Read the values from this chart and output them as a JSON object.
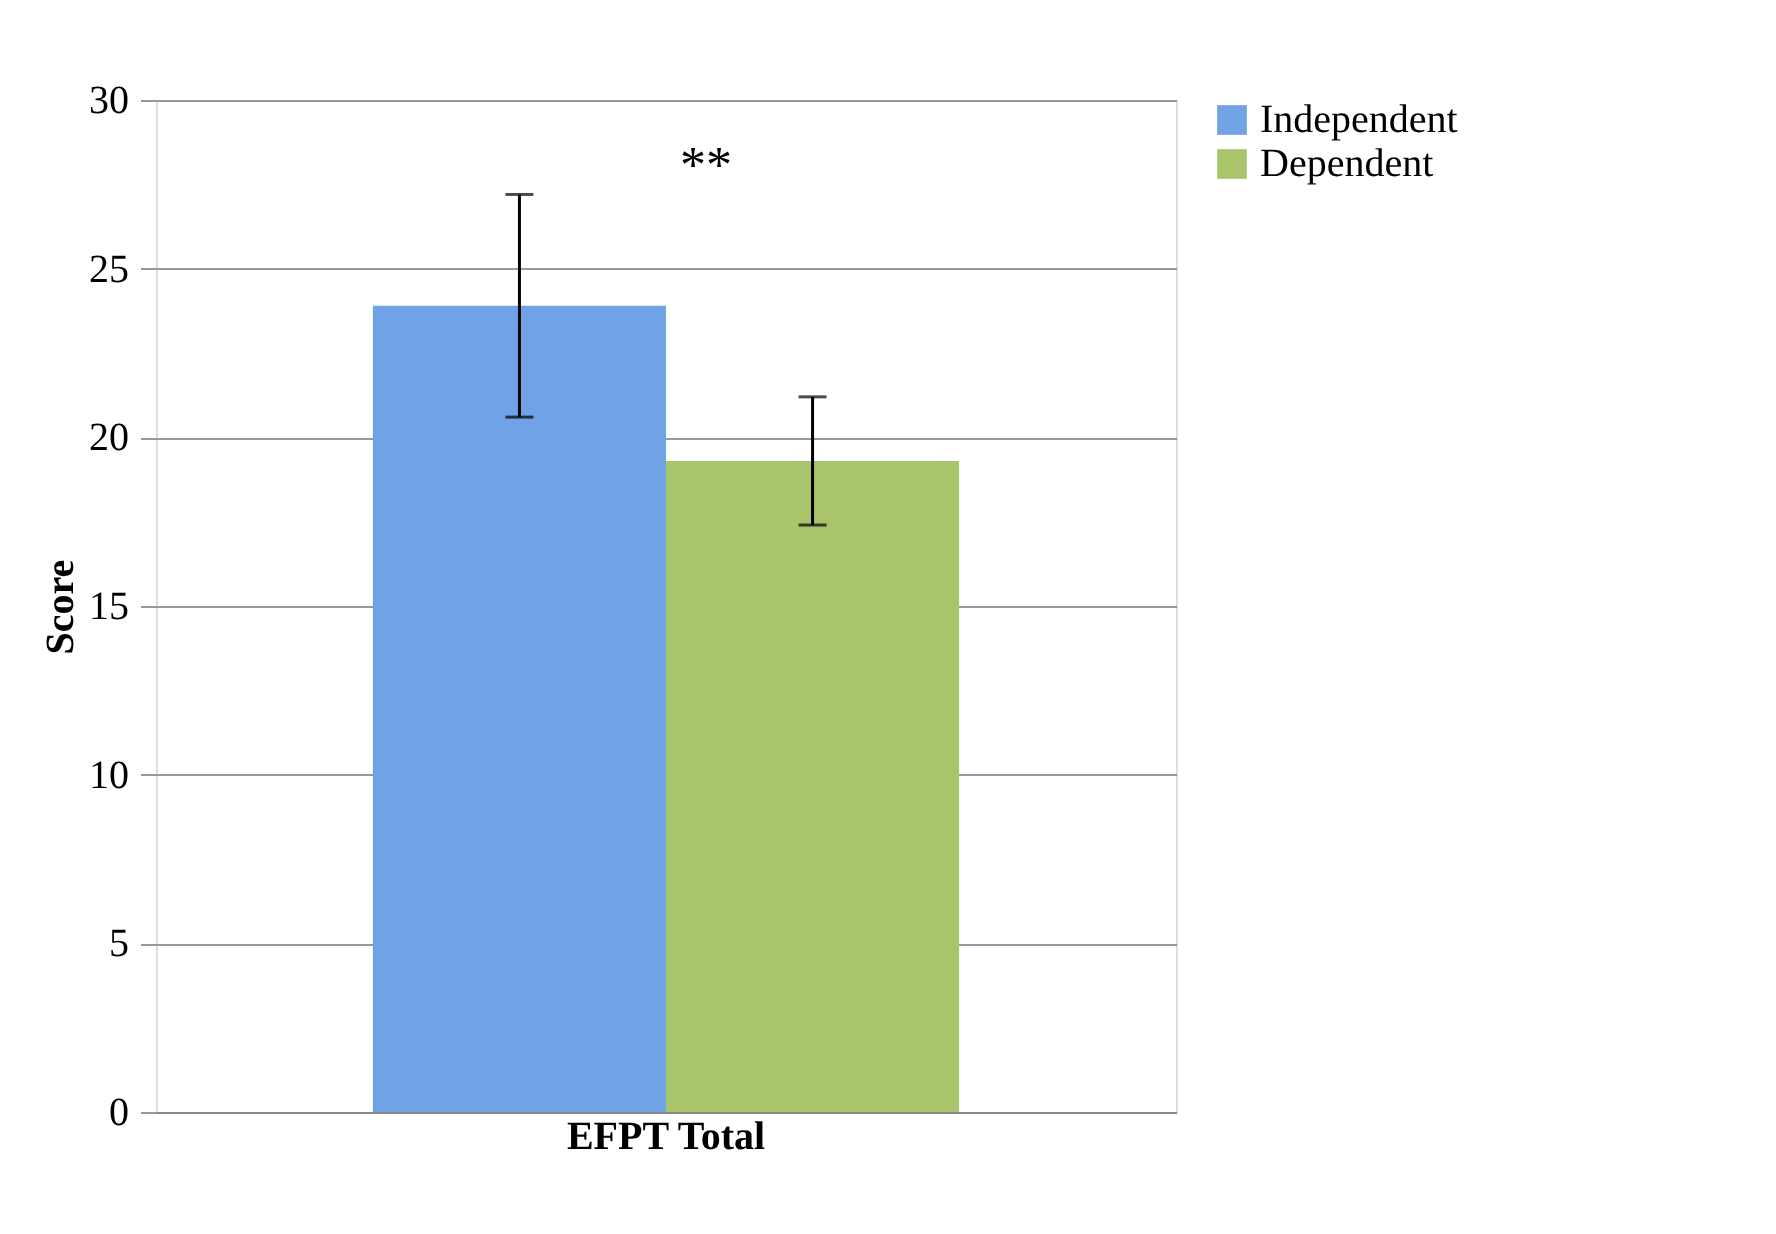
{
  "chart_data": {
    "type": "bar",
    "ylabel": "Score",
    "categories": [
      "EFPT Total"
    ],
    "series": [
      {
        "name": "Independent",
        "color": "#6fa3e6",
        "values": [
          23.9
        ],
        "errors": [
          [
            20.6,
            27.2
          ]
        ]
      },
      {
        "name": "Dependent",
        "color": "#a9c46b",
        "values": [
          19.3
        ],
        "errors": [
          [
            17.4,
            21.2
          ]
        ]
      }
    ],
    "ylim": [
      0,
      30
    ],
    "yticks": [
      0,
      5,
      10,
      15,
      20,
      25,
      30
    ],
    "grid": "y",
    "legend": "right",
    "annotations": [
      "**"
    ]
  }
}
